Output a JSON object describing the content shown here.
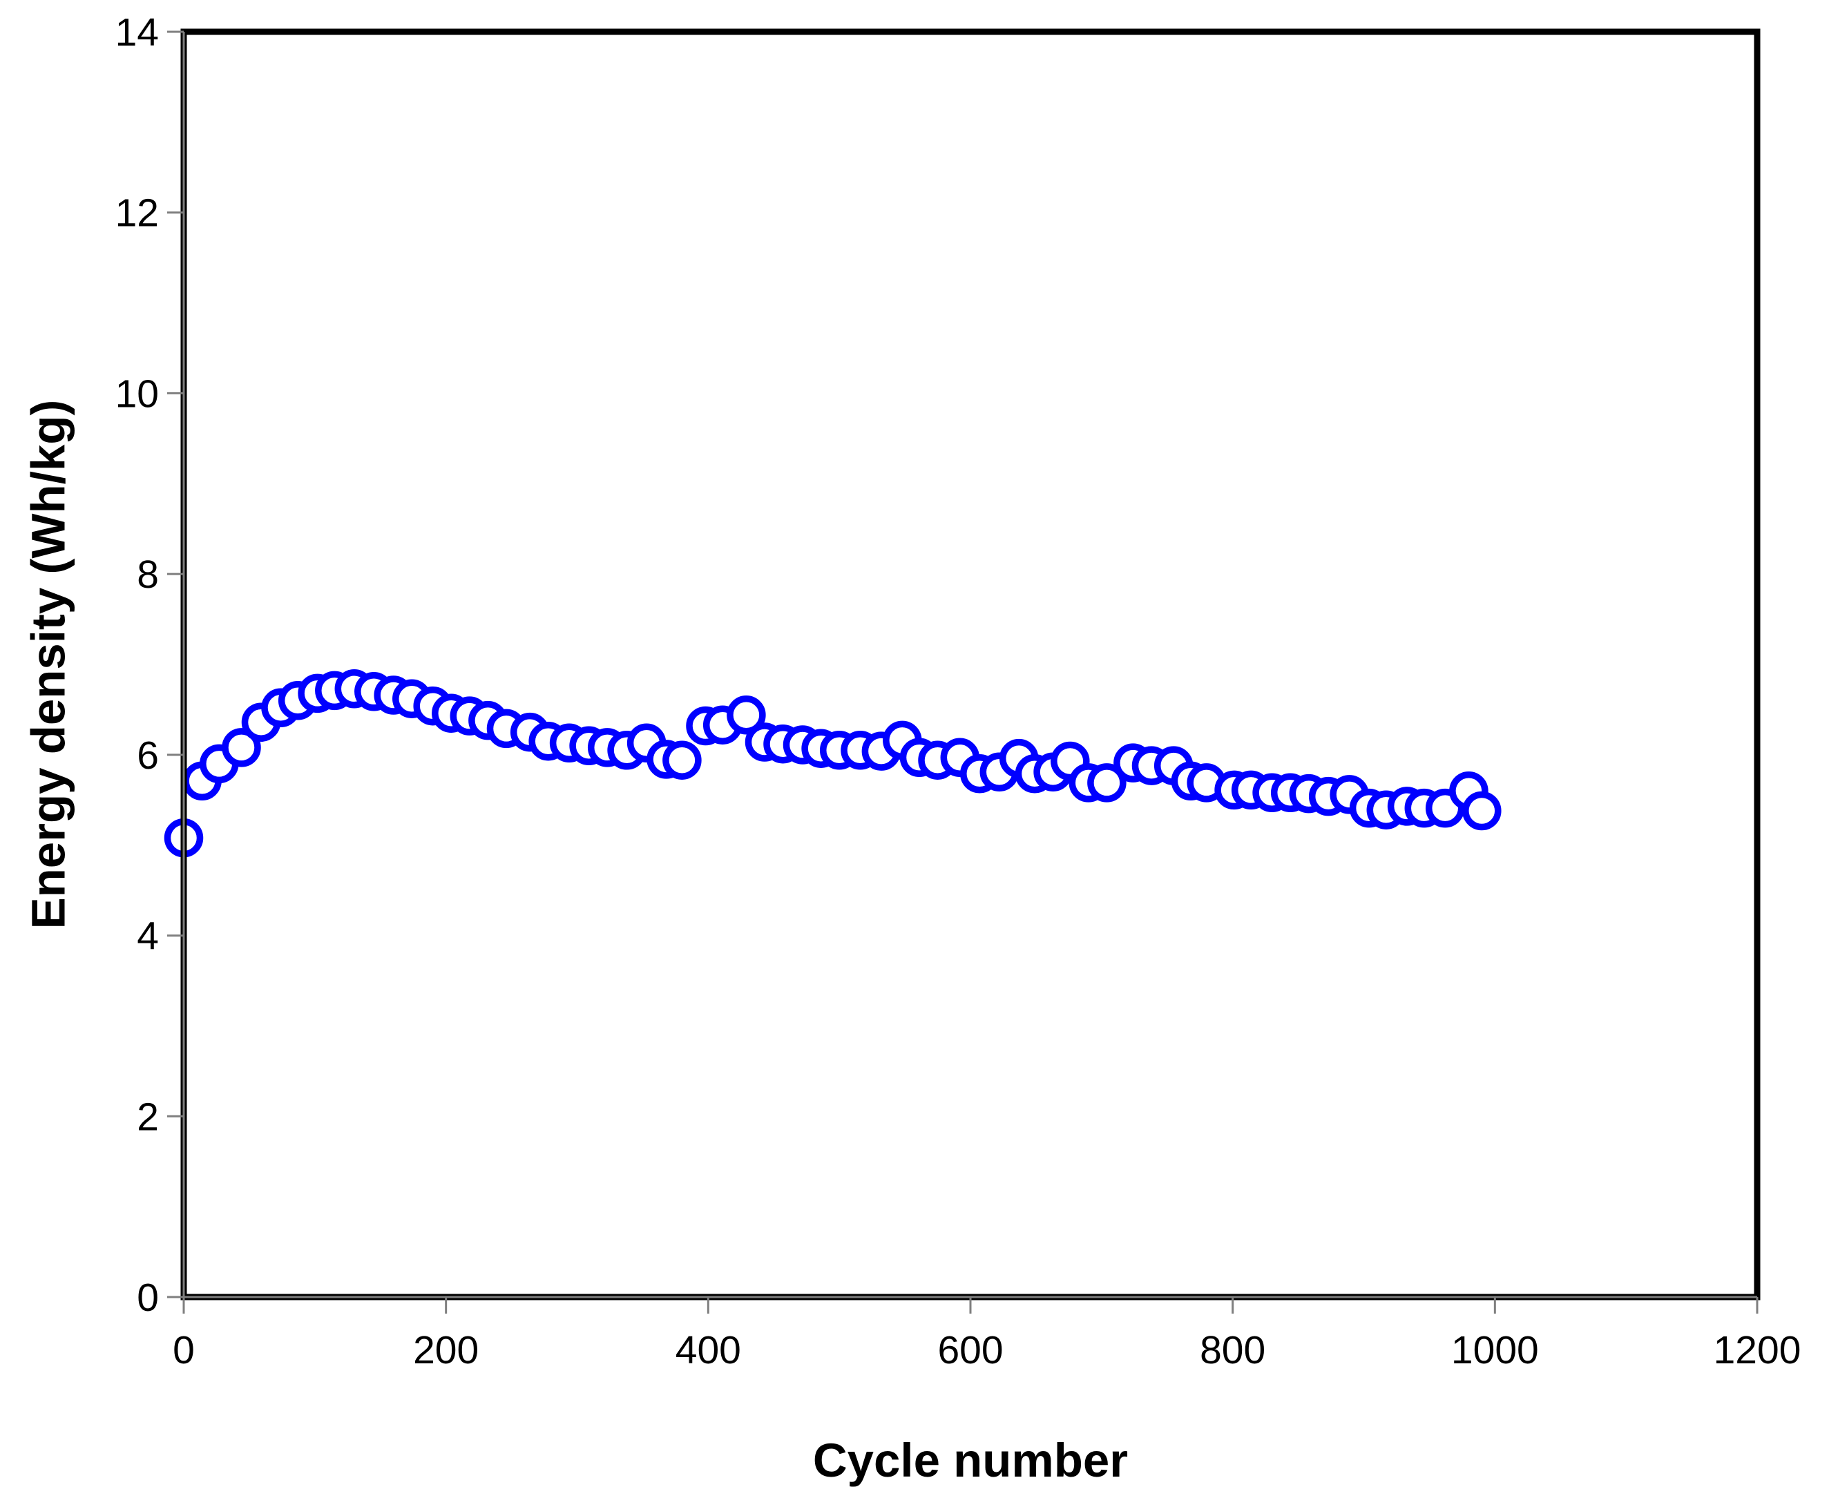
{
  "figure": {
    "background": "#FFFFFF"
  },
  "chart_data": {
    "type": "scatter",
    "title": "",
    "xlabel": "Cycle number",
    "ylabel": "Energy density (Wh/kg)",
    "xlim": [
      0,
      1200
    ],
    "ylim": [
      0,
      14
    ],
    "x_ticks": [
      0,
      200,
      400,
      600,
      800,
      1000,
      1200
    ],
    "y_ticks": [
      0,
      2,
      4,
      6,
      8,
      10,
      12,
      14
    ],
    "grid": false,
    "legend": false,
    "marker": {
      "shape": "circle",
      "fill": "#FFFFFF",
      "stroke": "#0000FF"
    },
    "series": [
      {
        "name": "Energy density (Wh/kg)",
        "x": [
          0,
          14,
          27,
          44,
          59,
          74,
          87,
          102,
          115,
          130,
          145,
          160,
          174,
          190,
          204,
          218,
          232,
          246,
          264,
          278,
          294,
          309,
          323,
          338,
          353,
          368,
          380,
          398,
          411,
          429,
          443,
          457,
          472,
          486,
          500,
          516,
          532,
          548,
          561,
          575,
          592,
          607,
          622,
          637,
          649,
          663,
          676,
          690,
          704,
          724,
          738,
          755,
          768,
          780,
          801,
          814,
          830,
          844,
          858,
          873,
          889,
          904,
          917,
          933,
          946,
          962,
          980,
          990
        ],
        "y": [
          5.08,
          5.71,
          5.9,
          6.08,
          6.36,
          6.52,
          6.6,
          6.68,
          6.71,
          6.73,
          6.7,
          6.66,
          6.62,
          6.54,
          6.46,
          6.43,
          6.38,
          6.29,
          6.25,
          6.15,
          6.13,
          6.1,
          6.08,
          6.05,
          6.13,
          5.95,
          5.94,
          6.32,
          6.33,
          6.44,
          6.14,
          6.12,
          6.11,
          6.07,
          6.05,
          6.05,
          6.04,
          6.16,
          5.97,
          5.94,
          5.97,
          5.79,
          5.81,
          5.96,
          5.79,
          5.81,
          5.93,
          5.69,
          5.69,
          5.91,
          5.88,
          5.88,
          5.71,
          5.69,
          5.61,
          5.61,
          5.58,
          5.58,
          5.57,
          5.54,
          5.56,
          5.41,
          5.39,
          5.43,
          5.41,
          5.41,
          5.6,
          5.38
        ]
      }
    ],
    "colors": {
      "plot_border": "#000000",
      "axis_line": "#7F7F7F",
      "tick_mark": "#7F7F7F",
      "tick_label": "#000000",
      "axis_title": "#000000",
      "marker_stroke": "#0000FF",
      "marker_fill": "#FFFFFF"
    }
  }
}
